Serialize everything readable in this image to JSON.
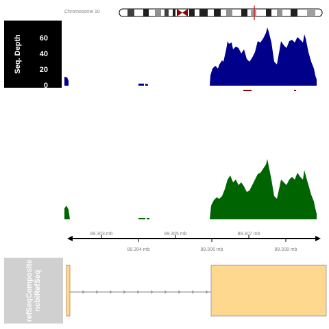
{
  "ideogram": {
    "label": "Chromosome 10"
  },
  "depth_track": {
    "title": "Seq. Depth",
    "y_ticks": [
      "60",
      "40",
      "20",
      "0"
    ],
    "color": "#00008b"
  },
  "coverage_track": {
    "color": "#006400"
  },
  "axis": {
    "top_ticks": [
      "89.303 mb",
      "89.305 mb",
      "89.307 mb"
    ],
    "bottom_ticks": [
      "89.304 mb",
      "89.306 mb",
      "89.308 mb"
    ]
  },
  "gene_track": {
    "title_line1": "refSeqComposite",
    "title_line2": "ncbiRefSeq",
    "exon_color": "#ffd890",
    "intron_color": "#808080"
  }
}
